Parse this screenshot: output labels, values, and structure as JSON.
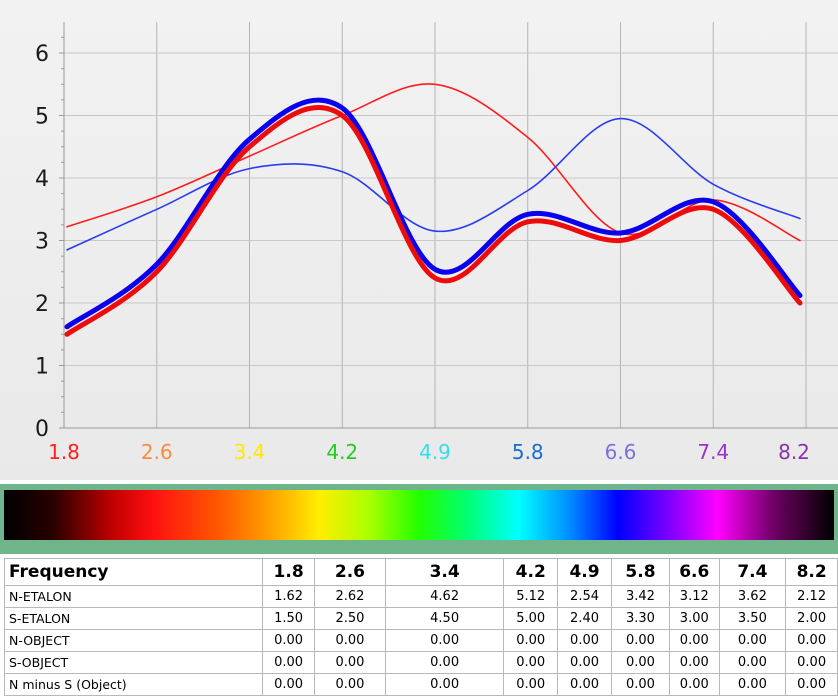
{
  "chart_data": {
    "type": "line",
    "x": [
      1.8,
      2.6,
      3.4,
      4.2,
      4.9,
      5.8,
      6.6,
      7.4,
      8.2
    ],
    "x_tick_labels": [
      "1.8",
      "2.6",
      "3.4",
      "4.2",
      "4.9",
      "5.8",
      "6.6",
      "7.4",
      "8.2"
    ],
    "x_tick_colors": [
      "#ff2020",
      "#ff8a3c",
      "#ffe800",
      "#22cc22",
      "#33ddee",
      "#1a6cd0",
      "#7a72e0",
      "#9933cc",
      "#8a33aa"
    ],
    "y_ticks": [
      "0",
      "1",
      "2",
      "3",
      "4",
      "5",
      "6"
    ],
    "ylim": [
      0,
      6.6
    ],
    "grid": true,
    "series": [
      {
        "values": [
          3.22,
          3.7,
          4.35,
          5.0,
          5.5,
          4.65,
          3.12,
          3.65,
          3.0
        ],
        "color": "#ff1c1c",
        "style": "thin"
      },
      {
        "values": [
          2.85,
          3.5,
          4.15,
          4.1,
          3.15,
          3.8,
          4.95,
          3.9,
          3.35
        ],
        "color": "#2a3cf0",
        "style": "thin"
      },
      {
        "values": [
          1.62,
          2.62,
          4.62,
          5.12,
          2.54,
          3.42,
          3.12,
          3.62,
          2.12
        ],
        "color": "#0a00ee",
        "style": "thick"
      },
      {
        "values": [
          1.5,
          2.5,
          4.5,
          5.0,
          2.4,
          3.3,
          3.0,
          3.5,
          2.0
        ],
        "color": "#ee0b0b",
        "style": "thick"
      }
    ]
  },
  "table": {
    "header_label": "Frequency",
    "frequencies": [
      "1.8",
      "2.6",
      "3.4",
      "4.2",
      "4.9",
      "5.8",
      "6.6",
      "7.4",
      "8.2"
    ],
    "rows": [
      {
        "label": "N-ETALON",
        "values": [
          "1.62",
          "2.62",
          "4.62",
          "5.12",
          "2.54",
          "3.42",
          "3.12",
          "3.62",
          "2.12"
        ]
      },
      {
        "label": "S-ETALON",
        "values": [
          "1.50",
          "2.50",
          "4.50",
          "5.00",
          "2.40",
          "3.30",
          "3.00",
          "3.50",
          "2.00"
        ]
      },
      {
        "label": "N-OBJECT",
        "values": [
          "0.00",
          "0.00",
          "0.00",
          "0.00",
          "0.00",
          "0.00",
          "0.00",
          "0.00",
          "0.00"
        ]
      },
      {
        "label": "S-OBJECT",
        "values": [
          "0.00",
          "0.00",
          "0.00",
          "0.00",
          "0.00",
          "0.00",
          "0.00",
          "0.00",
          "0.00"
        ]
      },
      {
        "label": "N minus S (Object)",
        "values": [
          "0.00",
          "0.00",
          "0.00",
          "0.00",
          "0.00",
          "0.00",
          "0.00",
          "0.00",
          "0.00"
        ]
      }
    ]
  }
}
